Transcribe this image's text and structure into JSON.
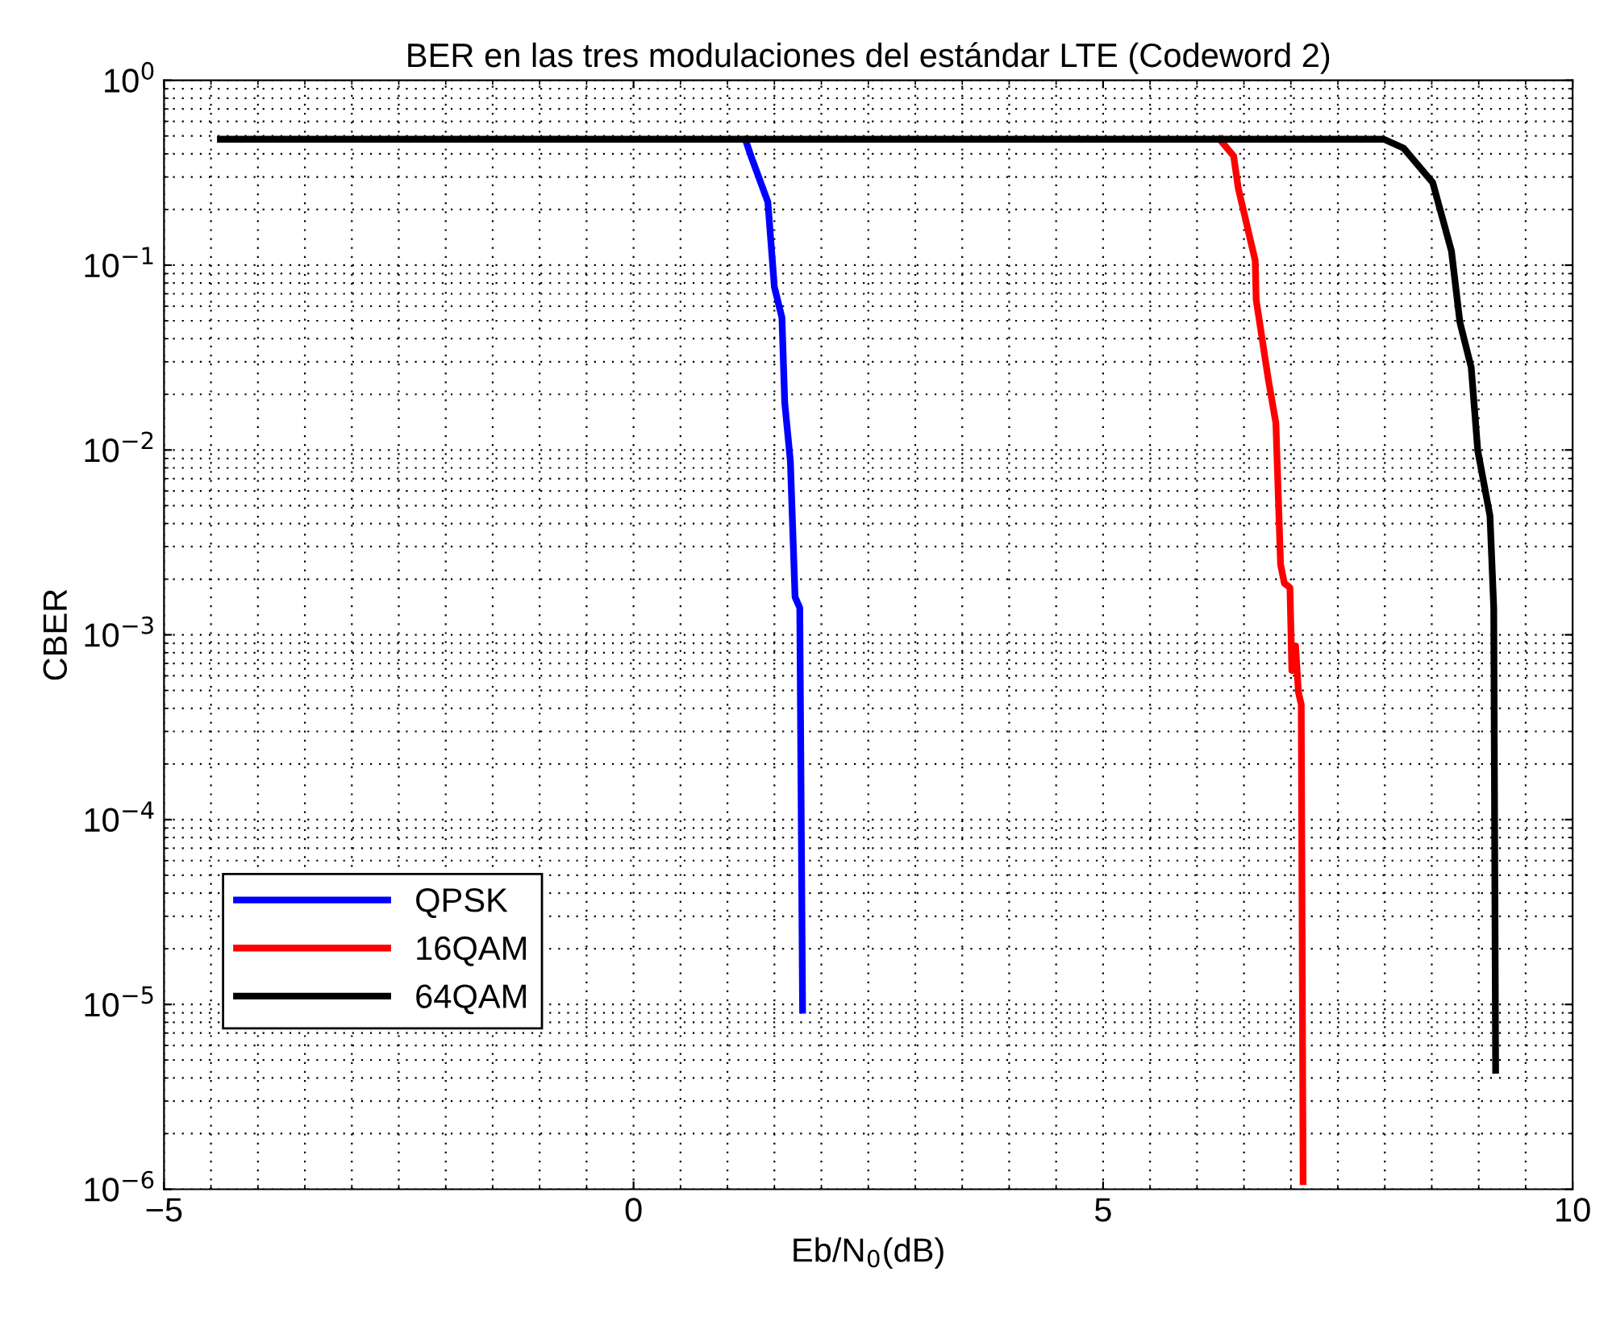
{
  "chart_data": {
    "type": "line",
    "title": "BER en las tres modulaciones del estándar LTE (Codeword 2)",
    "xlabel": "Eb/N$_{0}$(dB)",
    "ylabel": "CBER",
    "log": "y",
    "grid": true,
    "legend": "bottom left",
    "line_style": "solid",
    "marker": "none",
    "xlim": [
      -5,
      10
    ],
    "xticks": [
      {
        "value": -5,
        "label": "−5"
      },
      0,
      5,
      10
    ],
    "ylim": [
      1e-06,
      1
    ],
    "yticks": [
      {
        "value": 1e-06,
        "label": "10$^{−6}$"
      },
      {
        "value": 1e-05,
        "label": "10$^{−5}$"
      },
      {
        "value": 0.0001,
        "label": "10$^{−4}$"
      },
      {
        "value": 0.001,
        "label": "10$^{−3}$"
      },
      {
        "value": 0.01,
        "label": "10$^{−2}$"
      },
      {
        "value": 0.1,
        "label": "10$^{−1}$"
      },
      {
        "value": 1,
        "label": "10$^{0}$"
      }
    ],
    "series": [
      {
        "name": "QPSK",
        "color": "#0000ff",
        "x": [
          1.19,
          1.25,
          1.43,
          1.5,
          1.58,
          1.61,
          1.67,
          1.72,
          1.77,
          1.8
        ],
        "values": [
          0.48,
          0.39,
          0.22,
          0.076,
          0.052,
          0.018,
          0.0087,
          0.0016,
          0.0014,
          9.3e-06
        ]
      },
      {
        "name": "16QAM",
        "color": "#ff0000",
        "x": [
          6.24,
          6.39,
          6.44,
          6.62,
          6.63,
          6.76,
          6.84,
          6.89,
          6.93,
          6.99,
          7.01,
          7.05,
          7.08,
          7.11,
          7.13
        ],
        "values": [
          0.48,
          0.39,
          0.26,
          0.106,
          0.065,
          0.024,
          0.014,
          0.0024,
          0.0019,
          0.0018,
          0.00064,
          0.00087,
          0.00049,
          0.00042,
          1.1e-06
        ]
      },
      {
        "name": "64QAM",
        "color": "#000000",
        "x": [
          -4.4,
          7.99,
          8.2,
          8.51,
          8.71,
          8.8,
          8.92,
          8.99,
          9.12,
          9.16,
          9.18
        ],
        "values": [
          0.48,
          0.48,
          0.43,
          0.28,
          0.119,
          0.049,
          0.028,
          0.0099,
          0.0044,
          0.0014,
          4.4e-06
        ]
      }
    ]
  }
}
